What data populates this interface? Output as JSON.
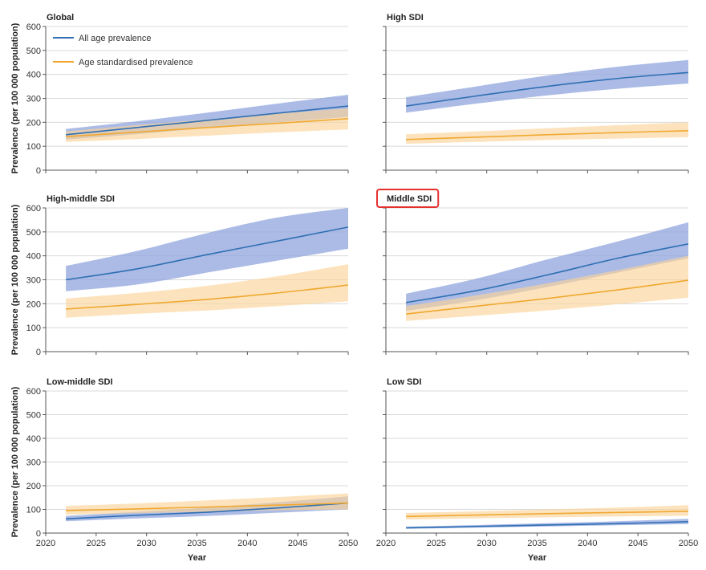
{
  "highlighted_panel": "Middle SDI",
  "colors": {
    "all_age_line": "#2f6fb3",
    "all_age_band": "#8fa4dd",
    "age_std_line": "#f0a830",
    "age_std_band": "#fbd49a",
    "highlight_box": "#e53030",
    "grid": "#d9d9d9"
  },
  "legend": [
    "All age prevalence",
    "Age standardised prevalence"
  ],
  "chart_data": [
    {
      "type": "line",
      "title": "Global",
      "ylabel": "Prevalence (per 100 000 population)",
      "xlabel": "",
      "ylim": [
        0,
        600
      ],
      "xlim": [
        2020,
        2050
      ],
      "yticks": [
        0,
        100,
        200,
        300,
        400,
        500,
        600
      ],
      "xticks": [
        2020,
        2025,
        2030,
        2035,
        2040,
        2045,
        2050
      ],
      "x": [
        2022,
        2029,
        2036,
        2043,
        2050
      ],
      "series": [
        {
          "name": "All age prevalence",
          "values": [
            148,
            178,
            208,
            238,
            268
          ],
          "lower": [
            128,
            150,
            176,
            200,
            222
          ],
          "upper": [
            172,
            204,
            240,
            278,
            315
          ]
        },
        {
          "name": "Age standardised prevalence",
          "values": [
            140,
            159,
            178,
            196,
            215
          ],
          "lower": [
            118,
            130,
            144,
            158,
            170
          ],
          "upper": [
            162,
            188,
            212,
            236,
            258
          ]
        }
      ]
    },
    {
      "type": "line",
      "title": "High SDI",
      "ylabel": "",
      "xlabel": "",
      "ylim": [
        0,
        600
      ],
      "xlim": [
        2020,
        2050
      ],
      "yticks": [
        0,
        100,
        200,
        300,
        400,
        500,
        600
      ],
      "xticks": [
        2020,
        2025,
        2030,
        2035,
        2040,
        2045,
        2050
      ],
      "x": [
        2022,
        2029,
        2036,
        2043,
        2050
      ],
      "series": [
        {
          "name": "All age prevalence",
          "values": [
            268,
            310,
            350,
            383,
            408
          ],
          "lower": [
            240,
            278,
            312,
            340,
            362
          ],
          "upper": [
            305,
            350,
            395,
            432,
            460
          ]
        },
        {
          "name": "Age standardised prevalence",
          "values": [
            128,
            138,
            148,
            157,
            165
          ],
          "lower": [
            110,
            118,
            126,
            132,
            138
          ],
          "upper": [
            150,
            162,
            175,
            188,
            200
          ]
        }
      ]
    },
    {
      "type": "line",
      "title": "High-middle SDI",
      "ylabel": "Prevalence (per 100 000 population)",
      "xlabel": "",
      "ylim": [
        0,
        600
      ],
      "xlim": [
        2020,
        2050
      ],
      "yticks": [
        0,
        100,
        200,
        300,
        400,
        500,
        600
      ],
      "xticks": [
        2020,
        2025,
        2030,
        2035,
        2040,
        2045,
        2050
      ],
      "x": [
        2022,
        2029,
        2036,
        2043,
        2050
      ],
      "series": [
        {
          "name": "All age prevalence",
          "values": [
            300,
            345,
            405,
            462,
            520
          ],
          "lower": [
            252,
            280,
            330,
            380,
            430
          ],
          "upper": [
            358,
            420,
            495,
            560,
            600
          ]
        },
        {
          "name": "Age standardised prevalence",
          "values": [
            178,
            197,
            218,
            245,
            278
          ],
          "lower": [
            142,
            158,
            172,
            190,
            210
          ],
          "upper": [
            222,
            245,
            275,
            315,
            365
          ]
        }
      ]
    },
    {
      "type": "line",
      "title": "Middle SDI",
      "ylabel": "",
      "xlabel": "",
      "ylim": [
        0,
        600
      ],
      "xlim": [
        2020,
        2050
      ],
      "yticks": [
        0,
        100,
        200,
        300,
        400,
        500,
        600
      ],
      "xticks": [
        2020,
        2025,
        2030,
        2035,
        2040,
        2045,
        2050
      ],
      "x": [
        2022,
        2029,
        2036,
        2043,
        2050
      ],
      "series": [
        {
          "name": "All age prevalence",
          "values": [
            205,
            255,
            320,
            390,
            450
          ],
          "lower": [
            170,
            215,
            270,
            330,
            390
          ],
          "upper": [
            242,
            305,
            385,
            460,
            540
          ]
        },
        {
          "name": "Age standardised prevalence",
          "values": [
            157,
            190,
            222,
            258,
            298
          ],
          "lower": [
            128,
            150,
            172,
            198,
            225
          ],
          "upper": [
            190,
            235,
            285,
            340,
            400
          ]
        }
      ]
    },
    {
      "type": "line",
      "title": "Low-middle SDI",
      "ylabel": "Prevalence (per 100 000 population)",
      "xlabel": "Year",
      "ylim": [
        0,
        600
      ],
      "xlim": [
        2020,
        2050
      ],
      "yticks": [
        0,
        100,
        200,
        300,
        400,
        500,
        600
      ],
      "xticks": [
        2020,
        2025,
        2030,
        2035,
        2040,
        2045,
        2050
      ],
      "x": [
        2022,
        2029,
        2036,
        2043,
        2050
      ],
      "series": [
        {
          "name": "All age prevalence",
          "values": [
            60,
            75,
            88,
            106,
            127
          ],
          "lower": [
            50,
            62,
            72,
            86,
            100
          ],
          "upper": [
            72,
            90,
            108,
            130,
            155
          ]
        },
        {
          "name": "Age standardised prevalence",
          "values": [
            95,
            102,
            110,
            118,
            127
          ],
          "lower": [
            78,
            84,
            90,
            96,
            100
          ],
          "upper": [
            115,
            125,
            138,
            152,
            168
          ]
        }
      ]
    },
    {
      "type": "line",
      "title": "Low SDI",
      "ylabel": "",
      "xlabel": "Year",
      "ylim": [
        0,
        600
      ],
      "xlim": [
        2020,
        2050
      ],
      "yticks": [
        0,
        100,
        200,
        300,
        400,
        500,
        600
      ],
      "xticks": [
        2020,
        2025,
        2030,
        2035,
        2040,
        2045,
        2050
      ],
      "x": [
        2022,
        2029,
        2036,
        2043,
        2050
      ],
      "series": [
        {
          "name": "All age prevalence",
          "values": [
            22,
            28,
            34,
            40,
            48
          ],
          "lower": [
            18,
            23,
            28,
            33,
            38
          ],
          "upper": [
            27,
            34,
            42,
            50,
            60
          ]
        },
        {
          "name": "Age standardised prevalence",
          "values": [
            70,
            76,
            82,
            87,
            92
          ],
          "lower": [
            57,
            62,
            66,
            70,
            73
          ],
          "upper": [
            85,
            92,
            100,
            108,
            118
          ]
        }
      ]
    }
  ]
}
